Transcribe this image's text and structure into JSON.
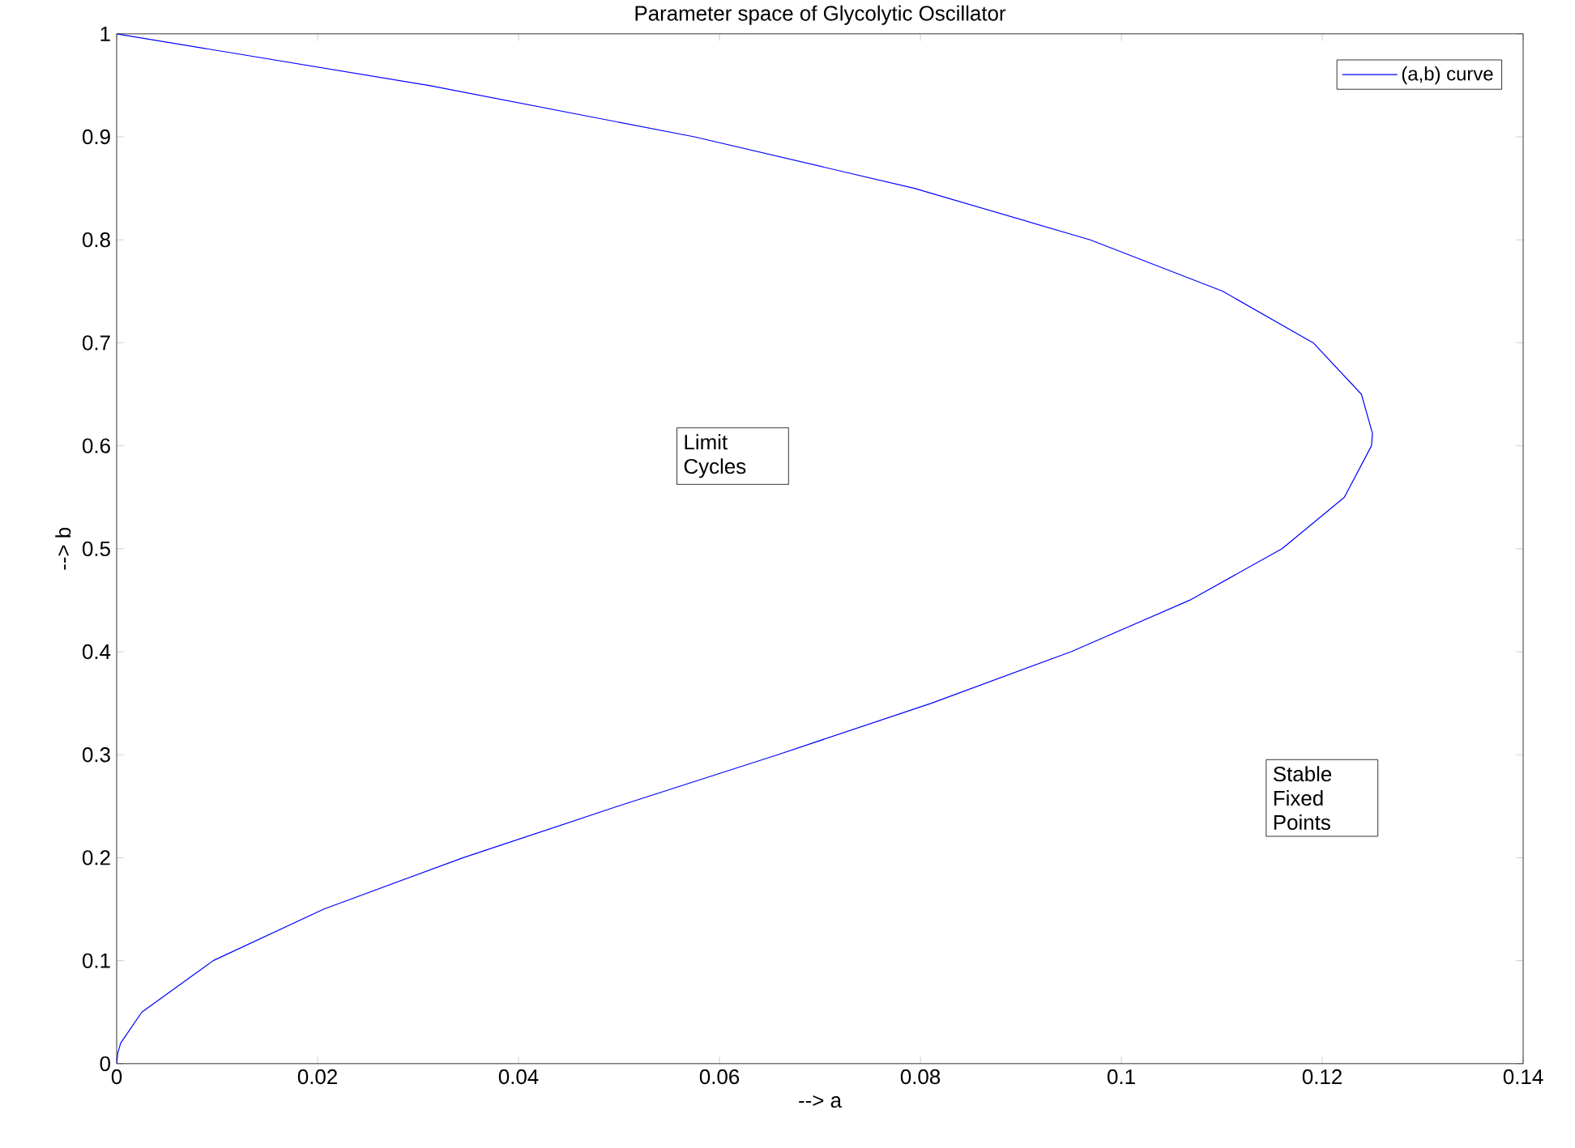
{
  "chart_data": {
    "type": "line",
    "title": "Parameter space of Glycolytic Oscillator",
    "xlabel": "--> a",
    "ylabel": "--> b",
    "series": [
      {
        "name": "(a,b) curve",
        "color": "#0000ff",
        "x": [
          0,
          0.0001,
          0.0004,
          0.0025,
          0.0096,
          0.0206,
          0.0345,
          0.0499,
          0.0658,
          0.0811,
          0.095,
          0.1068,
          0.116,
          0.1222,
          0.1249,
          0.125,
          0.1239,
          0.1191,
          0.1101,
          0.0969,
          0.0794,
          0.0575,
          0.031,
          0
        ],
        "values": [
          0,
          0.01,
          0.02,
          0.05,
          0.1,
          0.15,
          0.2,
          0.25,
          0.3,
          0.35,
          0.4,
          0.45,
          0.5,
          0.55,
          0.6,
          0.612,
          0.65,
          0.7,
          0.75,
          0.8,
          0.85,
          0.9,
          0.95,
          1
        ]
      }
    ],
    "xlim": [
      0,
      0.14
    ],
    "ylim": [
      0,
      1
    ],
    "xticks": [
      0,
      0.02,
      0.04,
      0.06,
      0.08,
      0.1,
      0.12,
      0.14
    ],
    "yticks": [
      0,
      0.1,
      0.2,
      0.3,
      0.4,
      0.5,
      0.6,
      0.7,
      0.8,
      0.9,
      1
    ],
    "annotations": [
      "Limit Cycles",
      "Stable Fixed Points"
    ],
    "legend": "top right",
    "grid": false,
    "marker": "none",
    "line_style": "solid"
  }
}
